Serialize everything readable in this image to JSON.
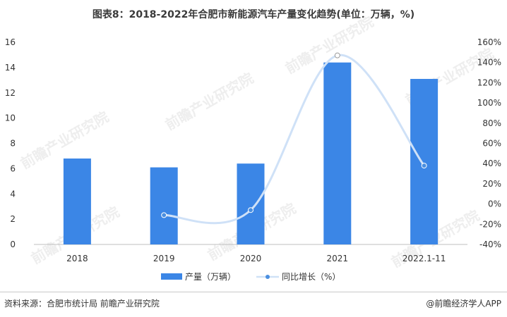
{
  "title": "图表8：2018-2022年合肥市新能源汽车产量变化趋势(单位：万辆，%)",
  "source": "资料来源：合肥市统计局 前瞻产业研究院",
  "brand": "@前瞻经济学人APP",
  "watermark": "前瞻产业研究院",
  "colors": {
    "bar": "#3b86e6",
    "line": "#cfe1f7",
    "line_marker": "#4a8fe0"
  },
  "chart_data": {
    "type": "bar",
    "categories": [
      "2018",
      "2019",
      "2020",
      "2021",
      "2022.1-11"
    ],
    "series": [
      {
        "name": "产量（万辆）",
        "type": "bar",
        "axis": "left",
        "values": [
          6.8,
          6.1,
          6.4,
          14.4,
          13.1
        ]
      },
      {
        "name": "同比增长（%）",
        "type": "line",
        "axis": "right",
        "values": [
          null,
          -11,
          -6,
          147,
          38
        ]
      }
    ],
    "y_left": {
      "min": 0,
      "max": 16,
      "ticks": [
        "0",
        "2",
        "4",
        "6",
        "8",
        "10",
        "12",
        "14",
        "16"
      ]
    },
    "y_right": {
      "min": -40,
      "max": 160,
      "ticks": [
        "-40%",
        "-20%",
        "0%",
        "20%",
        "40%",
        "60%",
        "80%",
        "100%",
        "120%",
        "140%",
        "160%"
      ]
    },
    "legend": {
      "position": "bottom",
      "items": [
        "产量（万辆）",
        "同比增长（%）"
      ]
    },
    "grid": false
  }
}
